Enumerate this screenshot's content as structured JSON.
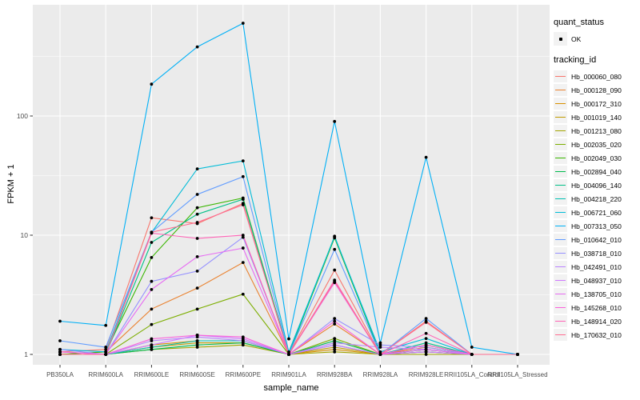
{
  "legend": {
    "quant_status_title": "quant_status",
    "quant_status_value": "OK",
    "tracking_id_title": "tracking_id"
  },
  "chart_data": {
    "type": "line",
    "title": "",
    "xlabel": "sample_name",
    "ylabel": "FPKM + 1",
    "y_scale": "log10",
    "y_ticks": [
      1,
      10,
      100
    ],
    "y_minor_ticks": [
      3.162,
      31.62,
      316.2
    ],
    "ylim": [
      0.82,
      890
    ],
    "grid": "on",
    "legend_position": "right",
    "panel_background": "#EBEBEB",
    "grid_color": "#FFFFFF",
    "marker_color": "#000000",
    "categories": [
      "PB350LA",
      "RRIM600LA",
      "RRIM600LE",
      "RRIM600SE",
      "RRIM600PE",
      "RRIM901LA",
      "RRIM928BA",
      "RRIM928LA",
      "RRIM928LE",
      "RRII105LA_Control",
      "RRII105LA_Stressed"
    ],
    "series": [
      {
        "name": "Hb_000060_080",
        "color": "#F8766D",
        "values": [
          1.05,
          1.1,
          14,
          12.5,
          18.5,
          1.0,
          5.1,
          1.0,
          1.9,
          1.0,
          1.0
        ]
      },
      {
        "name": "Hb_000128_090",
        "color": "#EA8331",
        "values": [
          1.0,
          1.05,
          2.4,
          3.6,
          5.9,
          1.0,
          1.8,
          1.0,
          1.15,
          1.0,
          1.0
        ]
      },
      {
        "name": "Hb_000172_310",
        "color": "#D89000",
        "values": [
          1.0,
          1.0,
          1.2,
          1.3,
          1.3,
          1.0,
          1.1,
          1.0,
          1.05,
          1.0,
          1.0
        ]
      },
      {
        "name": "Hb_001019_140",
        "color": "#C09B00",
        "values": [
          1.05,
          1.0,
          1.15,
          1.25,
          1.25,
          1.0,
          1.15,
          1.0,
          1.1,
          1.0,
          1.0
        ]
      },
      {
        "name": "Hb_001213_080",
        "color": "#A3A500",
        "values": [
          1.0,
          1.0,
          1.1,
          1.15,
          1.2,
          1.0,
          1.05,
          1.0,
          1.0,
          1.0,
          1.0
        ]
      },
      {
        "name": "Hb_002035_020",
        "color": "#7CAE00",
        "values": [
          1.0,
          1.0,
          1.78,
          2.4,
          3.2,
          1.0,
          1.36,
          1.0,
          1.1,
          1.0,
          1.0
        ]
      },
      {
        "name": "Hb_002049_030",
        "color": "#39B600",
        "values": [
          1.0,
          1.05,
          6.5,
          17,
          20.5,
          1.0,
          9.5,
          1.0,
          1.2,
          1.0,
          1.0
        ]
      },
      {
        "name": "Hb_002894_040",
        "color": "#00BB4E",
        "values": [
          1.0,
          1.0,
          1.1,
          1.2,
          1.25,
          1.0,
          1.3,
          1.0,
          1.05,
          1.0,
          1.0
        ]
      },
      {
        "name": "Hb_004096_140",
        "color": "#00C087",
        "values": [
          1.0,
          1.0,
          8.7,
          15,
          20,
          1.0,
          9.8,
          1.0,
          1.25,
          1.0,
          1.0
        ]
      },
      {
        "name": "Hb_004218_220",
        "color": "#00C0B2",
        "values": [
          1.0,
          1.0,
          1.15,
          1.3,
          1.3,
          1.0,
          1.2,
          1.0,
          1.1,
          1.0,
          1.0
        ]
      },
      {
        "name": "Hb_006721_060",
        "color": "#00BCD8",
        "values": [
          1.1,
          1.05,
          10.5,
          36,
          42,
          1.05,
          9.7,
          1.05,
          1.36,
          1.0,
          1.0
        ]
      },
      {
        "name": "Hb_007313_050",
        "color": "#00B0F6",
        "values": [
          1.9,
          1.75,
          185,
          380,
          600,
          1.35,
          90,
          1.25,
          45,
          1.15,
          1.0
        ]
      },
      {
        "name": "Hb_010642_010",
        "color": "#619CFF",
        "values": [
          1.3,
          1.15,
          10.6,
          22,
          31,
          1.0,
          7.6,
          1.0,
          2.0,
          1.0,
          1.0
        ]
      },
      {
        "name": "Hb_038718_010",
        "color": "#9590FF",
        "values": [
          1.1,
          1.0,
          4.1,
          5.0,
          9.6,
          1.0,
          2.0,
          1.2,
          1.15,
          1.0,
          1.0
        ]
      },
      {
        "name": "Hb_042491_010",
        "color": "#B983FF",
        "values": [
          1.05,
          1.0,
          1.3,
          1.4,
          1.3,
          1.0,
          1.25,
          1.15,
          1.1,
          1.0,
          1.0
        ]
      },
      {
        "name": "Hb_048937_010",
        "color": "#CF78FF",
        "values": [
          1.0,
          1.0,
          1.2,
          1.45,
          1.35,
          1.0,
          1.2,
          1.0,
          1.05,
          1.0,
          1.0
        ]
      },
      {
        "name": "Hb_138705_010",
        "color": "#E76BF3",
        "values": [
          1.0,
          1.0,
          3.5,
          6.6,
          7.8,
          1.0,
          4.0,
          1.0,
          1.1,
          1.0,
          1.0
        ]
      },
      {
        "name": "Hb_145268_010",
        "color": "#FA62DB",
        "values": [
          1.05,
          1.0,
          1.35,
          1.45,
          1.4,
          1.0,
          1.9,
          1.0,
          1.2,
          1.0,
          1.0
        ]
      },
      {
        "name": "Hb_148914_020",
        "color": "#FF63B6",
        "values": [
          1.0,
          1.0,
          10.4,
          9.4,
          10.0,
          1.0,
          4.2,
          1.0,
          1.5,
          1.0,
          1.0
        ]
      },
      {
        "name": "Hb_170632_010",
        "color": "#FF6C91",
        "values": [
          1.0,
          1.0,
          10.6,
          12.8,
          18.0,
          1.0,
          4.1,
          1.0,
          1.86,
          1.0,
          1.0
        ]
      }
    ]
  }
}
